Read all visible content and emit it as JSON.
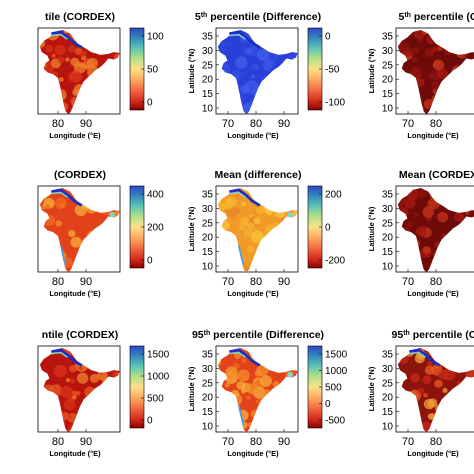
{
  "figure": {
    "rows": [
      {
        "panels": [
          {
            "title": "tile (CORDEX)",
            "title_sup": "",
            "title_rest": "",
            "colorbar_ticks": [
              "100",
              "50",
              "0"
            ],
            "scheme": "red",
            "xticks": [
              "80",
              "90"
            ],
            "xlabel": "Longitude (°E)",
            "ylabel": "",
            "yticks": []
          },
          {
            "title": "5",
            "title_sup": "th",
            "title_rest": " percentile (Difference)",
            "colorbar_ticks": [
              "0",
              "-50",
              "-100"
            ],
            "scheme": "blue",
            "xticks": [
              "70",
              "80",
              "90"
            ],
            "xlabel": "Longitude (°E)",
            "ylabel": "Latitude (°N)",
            "yticks": [
              "35",
              "30",
              "25",
              "20",
              "15",
              "10"
            ]
          },
          {
            "title": "5",
            "title_sup": "th",
            "title_rest": " percentile (C",
            "colorbar_ticks": [],
            "scheme": "darkred",
            "xticks": [
              "70",
              "80"
            ],
            "xlabel": "Longitude (°E)",
            "ylabel": "Latitude (°N)",
            "yticks": [
              "35",
              "30",
              "25",
              "20",
              "15",
              "10"
            ]
          }
        ]
      },
      {
        "panels": [
          {
            "title": "(CORDEX)",
            "title_sup": "",
            "title_rest": "",
            "colorbar_ticks": [
              "400",
              "200",
              "0"
            ],
            "scheme": "orange",
            "xticks": [
              "80",
              "90"
            ],
            "xlabel": "Longitude (°E)",
            "ylabel": "",
            "yticks": []
          },
          {
            "title": "Mean (difference)",
            "title_sup": "",
            "title_rest": "",
            "colorbar_ticks": [
              "200",
              "0",
              "-200"
            ],
            "scheme": "yellow",
            "xticks": [
              "70",
              "80",
              "90"
            ],
            "xlabel": "Longitude (°E)",
            "ylabel": "Latitude (°N)",
            "yticks": [
              "35",
              "30",
              "25",
              "20",
              "15",
              "10"
            ]
          },
          {
            "title": "Mean (CORDEX",
            "title_sup": "",
            "title_rest": "",
            "colorbar_ticks": [],
            "scheme": "darkred",
            "xticks": [
              "70",
              "80"
            ],
            "xlabel": "Longitude (°E)",
            "ylabel": "Latitude (°N)",
            "yticks": [
              "35",
              "30",
              "25",
              "20",
              "15",
              "10"
            ]
          }
        ]
      },
      {
        "panels": [
          {
            "title": "ntile (CORDEX)",
            "title_sup": "",
            "title_rest": "",
            "colorbar_ticks": [
              "1500",
              "1000",
              "500",
              "0"
            ],
            "scheme": "red",
            "xticks": [
              "80",
              "90"
            ],
            "xlabel": "Longitude (°E)",
            "ylabel": "",
            "yticks": []
          },
          {
            "title": "95",
            "title_sup": "th",
            "title_rest": " percentile (Difference)",
            "colorbar_ticks": [
              "1500",
              "1000",
              "500",
              "0",
              "-500"
            ],
            "scheme": "orange",
            "xticks": [
              "70",
              "80",
              "90"
            ],
            "xlabel": "Longitude (°E)",
            "ylabel": "Latitude (°N)",
            "yticks": [
              "35",
              "30",
              "25",
              "20",
              "15",
              "10"
            ]
          },
          {
            "title": "95",
            "title_sup": "th",
            "title_rest": " percentile (CO",
            "colorbar_ticks": [],
            "scheme": "mixed",
            "xticks": [
              "70",
              "80"
            ],
            "xlabel": "Longitude (°E)",
            "ylabel": "Latitude (°N)",
            "yticks": [
              "35",
              "30",
              "25",
              "20",
              "15",
              "10"
            ]
          }
        ]
      }
    ]
  },
  "colors": {
    "red": [
      "#b8140e",
      "#d8321a",
      "#e85a22",
      "#f0812c"
    ],
    "darkred": [
      "#6e0b08",
      "#8e130d",
      "#a81a12",
      "#c6351a"
    ],
    "orange": [
      "#e2421a",
      "#ef6a22",
      "#f48f2c",
      "#f7ae38"
    ],
    "yellow": [
      "#f29a28",
      "#f6b32e",
      "#f8c63a",
      "#e9842a"
    ],
    "blue": [
      "#2a3fd8",
      "#3550e4",
      "#2f46dd",
      "#4360ea"
    ],
    "mixed": [
      "#8e130d",
      "#c62a16",
      "#e85a22",
      "#f3a03a"
    ],
    "colorbar": [
      "#8b0000",
      "#d7301f",
      "#f46d43",
      "#fdae61",
      "#fee08b",
      "#d9ef8b",
      "#66c2a5",
      "#3288bd",
      "#3b4cc0"
    ],
    "coast_edge": [
      "#1c2fc4",
      "#4b9be8",
      "#7fd7c8",
      "#e6e65a"
    ]
  }
}
